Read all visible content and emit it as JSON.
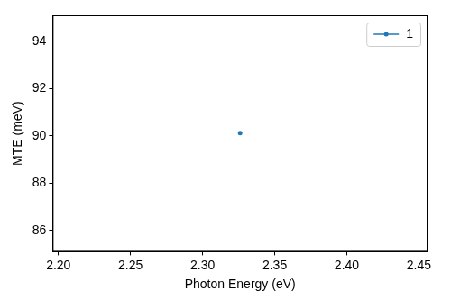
{
  "chart_data": {
    "type": "line",
    "x_label": "Photon Energy (eV)",
    "y_label": "MTE (meV)",
    "series": [
      {
        "name": "1",
        "color": "#1f77b4",
        "marker": "o",
        "line_style": "solid",
        "x": [
          2.326
        ],
        "values": [
          90.12
        ]
      }
    ],
    "xlim": [
      2.196,
      2.456
    ],
    "xticks": [
      {
        "value": 2.2,
        "label": "2.20"
      },
      {
        "value": 2.25,
        "label": "2.25"
      },
      {
        "value": 2.3,
        "label": "2.30"
      },
      {
        "value": 2.35,
        "label": "2.35"
      },
      {
        "value": 2.4,
        "label": "2.40"
      },
      {
        "value": 2.45,
        "label": "2.45"
      }
    ],
    "ylim": [
      85.1,
      95.1
    ],
    "yticks": [
      86,
      88,
      90,
      92,
      94
    ],
    "grid": false,
    "legend": "upper right"
  }
}
